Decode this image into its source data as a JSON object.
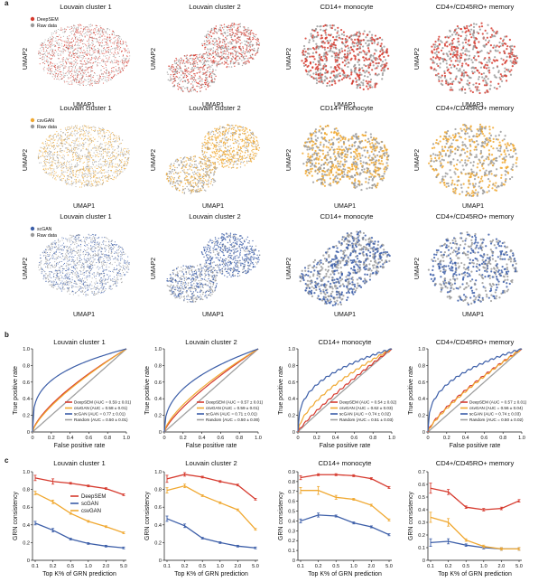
{
  "panel_labels": [
    "a",
    "b",
    "c"
  ],
  "panel_titles": [
    "Louvain cluster 1",
    "Louvain cluster 2",
    "CD14+ monocyte",
    "CD4+/CD45RO+ memory"
  ],
  "umap": {
    "xlabel": "UMAP1",
    "ylabel": "UMAP2",
    "rows": [
      {
        "method": "DeepSEM",
        "color": "#d63a2e",
        "raw_label": "Raw data",
        "raw_color": "#9a9a9a"
      },
      {
        "method": "csvGAN",
        "color": "#f0a830",
        "raw_label": "Raw data",
        "raw_color": "#9a9a9a"
      },
      {
        "method": "scGAN",
        "color": "#3c5ea8",
        "raw_label": "Raw data",
        "raw_color": "#9a9a9a"
      }
    ]
  },
  "colors": {
    "DeepSEM": "#d63a2e",
    "csvGAN": "#f0a830",
    "scGAN": "#3c5ea8",
    "Random": "#a0a0a0"
  },
  "chart_data": [
    {
      "type": "line",
      "panel": "b",
      "title": "Louvain cluster 1",
      "xlabel": "False positive rate",
      "ylabel": "True positive rate",
      "xlim": [
        0,
        1
      ],
      "ylim": [
        0,
        1
      ],
      "xticks": [
        "0",
        "0.2",
        "0.4",
        "0.6",
        "0.8",
        "1.0"
      ],
      "yticks": [
        "0",
        "0.2",
        "0.4",
        "0.6",
        "0.8",
        "1.0"
      ],
      "legend_position": "bottom-right",
      "series": [
        {
          "name": "DeepSEM (AUC = 0.59 ± 0.01)",
          "color": "#d63a2e",
          "auc": 0.59
        },
        {
          "name": "csvGAN (AUC = 0.58 ± 0.01)",
          "color": "#f0a830",
          "auc": 0.58
        },
        {
          "name": "scGAN (AUC = 0.77 ± 0.01)",
          "color": "#3c5ea8",
          "auc": 0.77
        },
        {
          "name": "Random (AUC = 0.50 ± 0.01)",
          "color": "#a0a0a0",
          "auc": 0.5
        }
      ]
    },
    {
      "type": "line",
      "panel": "b",
      "title": "Louvain cluster 2",
      "xlabel": "False positive rate",
      "ylabel": "True positive rate",
      "xlim": [
        0,
        1
      ],
      "ylim": [
        0,
        1
      ],
      "xticks": [
        "0",
        "0.2",
        "0.4",
        "0.6",
        "0.8",
        "1.0"
      ],
      "yticks": [
        "0",
        "0.2",
        "0.4",
        "0.6",
        "0.8",
        "1.0"
      ],
      "legend_position": "bottom-right",
      "series": [
        {
          "name": "DeepSEM (AUC = 0.57 ± 0.01)",
          "color": "#d63a2e",
          "auc": 0.57
        },
        {
          "name": "csvGAN (AUC = 0.59 ± 0.01)",
          "color": "#f0a830",
          "auc": 0.59
        },
        {
          "name": "scGAN (AUC = 0.71 ± 0.01)",
          "color": "#3c5ea8",
          "auc": 0.71
        },
        {
          "name": "Random (AUC = 0.50 ± 0.00)",
          "color": "#a0a0a0",
          "auc": 0.5
        }
      ]
    },
    {
      "type": "line",
      "panel": "b",
      "title": "CD14+ monocyte",
      "xlabel": "False positive rate",
      "ylabel": "True positive rate",
      "xlim": [
        0,
        1
      ],
      "ylim": [
        0,
        1
      ],
      "xticks": [
        "0",
        "0.2",
        "0.4",
        "0.6",
        "0.8",
        "1.0"
      ],
      "yticks": [
        "0",
        "0.2",
        "0.4",
        "0.6",
        "0.8",
        "1.0"
      ],
      "legend_position": "bottom-right",
      "series": [
        {
          "name": "DeepSEM (AUC = 0.54 ± 0.02)",
          "color": "#d63a2e",
          "auc": 0.54
        },
        {
          "name": "csvGAN (AUC = 0.62 ± 0.03)",
          "color": "#f0a830",
          "auc": 0.62
        },
        {
          "name": "scGAN (AUC = 0.74 ± 0.02)",
          "color": "#3c5ea8",
          "auc": 0.74
        },
        {
          "name": "Random (AUC = 0.51 ± 0.03)",
          "color": "#a0a0a0",
          "auc": 0.51
        }
      ]
    },
    {
      "type": "line",
      "panel": "b",
      "title": "CD4+/CD45RO+ memory",
      "xlabel": "False positive rate",
      "ylabel": "True positive rate",
      "xlim": [
        0,
        1
      ],
      "ylim": [
        0,
        1
      ],
      "xticks": [
        "0",
        "0.2",
        "0.4",
        "0.6",
        "0.8",
        "1.0"
      ],
      "yticks": [
        "0",
        "0.2",
        "0.4",
        "0.6",
        "0.8",
        "1.0"
      ],
      "legend_position": "bottom-right",
      "series": [
        {
          "name": "DeepSEM (AUC = 0.57 ± 0.01)",
          "color": "#d63a2e",
          "auc": 0.57
        },
        {
          "name": "csvGAN (AUC = 0.56 ± 0.04)",
          "color": "#f0a830",
          "auc": 0.56
        },
        {
          "name": "scGAN (AUC = 0.74 ± 0.03)",
          "color": "#3c5ea8",
          "auc": 0.74
        },
        {
          "name": "Random (AUC = 0.50 ± 0.02)",
          "color": "#a0a0a0",
          "auc": 0.5
        }
      ]
    },
    {
      "type": "line",
      "panel": "c",
      "title": "Louvain cluster 1",
      "xlabel": "Top K% of GRN prediction",
      "ylabel": "GRN consistency",
      "categories": [
        "0.1",
        "0.2",
        "0.5",
        "1.0",
        "2.0",
        "5.0"
      ],
      "ylim": [
        0,
        1.0
      ],
      "yticks": [
        "0",
        "0.2",
        "0.4",
        "0.6",
        "0.8",
        "1.0"
      ],
      "legend_position": "top-right",
      "series": [
        {
          "name": "DeepSEM",
          "color": "#d63a2e",
          "values": [
            0.93,
            0.89,
            0.87,
            0.84,
            0.81,
            0.74
          ],
          "errors": [
            0.03,
            0.03,
            0.01,
            0.01,
            0.01,
            0.01
          ]
        },
        {
          "name": "scGAN",
          "color": "#3c5ea8",
          "values": [
            0.42,
            0.34,
            0.24,
            0.19,
            0.16,
            0.14
          ],
          "errors": [
            0.02,
            0.02,
            0.01,
            0.01,
            0.01,
            0.01
          ]
        },
        {
          "name": "csvGAN",
          "color": "#f0a830",
          "values": [
            0.76,
            0.66,
            0.53,
            0.44,
            0.38,
            0.31
          ],
          "errors": [
            0.02,
            0.02,
            0.01,
            0.01,
            0.01,
            0.01
          ]
        }
      ]
    },
    {
      "type": "line",
      "panel": "c",
      "title": "Louvain cluster 2",
      "xlabel": "Top K% of GRN prediction",
      "ylabel": "GRN consistency",
      "categories": [
        "0.1",
        "0.2",
        "0.5",
        "1.0",
        "2.0",
        "5.0"
      ],
      "ylim": [
        0,
        1.0
      ],
      "yticks": [
        "0",
        "0.2",
        "0.4",
        "0.6",
        "0.8",
        "1.0"
      ],
      "series": [
        {
          "name": "DeepSEM",
          "color": "#d63a2e",
          "values": [
            0.92,
            0.97,
            0.94,
            0.89,
            0.85,
            0.69
          ],
          "errors": [
            0.04,
            0.02,
            0.01,
            0.01,
            0.01,
            0.01
          ]
        },
        {
          "name": "scGAN",
          "color": "#3c5ea8",
          "values": [
            0.47,
            0.39,
            0.25,
            0.2,
            0.16,
            0.14
          ],
          "errors": [
            0.03,
            0.02,
            0.01,
            0.01,
            0.01,
            0.01
          ]
        },
        {
          "name": "csvGAN",
          "color": "#f0a830",
          "values": [
            0.79,
            0.84,
            0.73,
            0.65,
            0.57,
            0.35
          ],
          "errors": [
            0.03,
            0.02,
            0.01,
            0.01,
            0.01,
            0.01
          ]
        }
      ]
    },
    {
      "type": "line",
      "panel": "c",
      "title": "CD14+ monocyte",
      "xlabel": "Top K% of GRN prediction",
      "ylabel": "GRN consistency",
      "categories": [
        "0.1",
        "0.2",
        "0.5",
        "1.0",
        "2.0",
        "5.0"
      ],
      "ylim": [
        0,
        0.9
      ],
      "yticks": [
        "0",
        "0.1",
        "0.2",
        "0.3",
        "0.4",
        "0.5",
        "0.6",
        "0.7",
        "0.8",
        "0.9"
      ],
      "series": [
        {
          "name": "DeepSEM",
          "color": "#d63a2e",
          "values": [
            0.84,
            0.87,
            0.87,
            0.86,
            0.83,
            0.74
          ],
          "errors": [
            0.02,
            0.01,
            0.01,
            0.01,
            0.01,
            0.01
          ]
        },
        {
          "name": "scGAN",
          "color": "#3c5ea8",
          "values": [
            0.4,
            0.46,
            0.45,
            0.38,
            0.34,
            0.26
          ],
          "errors": [
            0.02,
            0.02,
            0.01,
            0.01,
            0.01,
            0.01
          ]
        },
        {
          "name": "csvGAN",
          "color": "#f0a830",
          "values": [
            0.71,
            0.71,
            0.64,
            0.62,
            0.56,
            0.41
          ],
          "errors": [
            0.03,
            0.04,
            0.02,
            0.01,
            0.01,
            0.01
          ]
        }
      ]
    },
    {
      "type": "line",
      "panel": "c",
      "title": "CD4+/CD45RO+ memory",
      "xlabel": "Top K% of GRN prediction",
      "ylabel": "GRN consistency",
      "categories": [
        "0.1",
        "0.2",
        "0.5",
        "1.0",
        "2.0",
        "5.0"
      ],
      "ylim": [
        0,
        0.7
      ],
      "yticks": [
        "0",
        "0.1",
        "0.2",
        "0.3",
        "0.4",
        "0.5",
        "0.6",
        "0.7"
      ],
      "series": [
        {
          "name": "DeepSEM",
          "color": "#d63a2e",
          "values": [
            0.57,
            0.54,
            0.42,
            0.4,
            0.41,
            0.47
          ],
          "errors": [
            0.04,
            0.02,
            0.01,
            0.01,
            0.01,
            0.01
          ]
        },
        {
          "name": "scGAN",
          "color": "#3c5ea8",
          "values": [
            0.14,
            0.15,
            0.12,
            0.1,
            0.09,
            0.09
          ],
          "errors": [
            0.03,
            0.02,
            0.01,
            0.01,
            0.01,
            0.01
          ]
        },
        {
          "name": "csvGAN",
          "color": "#f0a830",
          "values": [
            0.34,
            0.3,
            0.16,
            0.11,
            0.09,
            0.09
          ],
          "errors": [
            0.04,
            0.03,
            0.01,
            0.01,
            0.01,
            0.01
          ]
        }
      ]
    }
  ]
}
